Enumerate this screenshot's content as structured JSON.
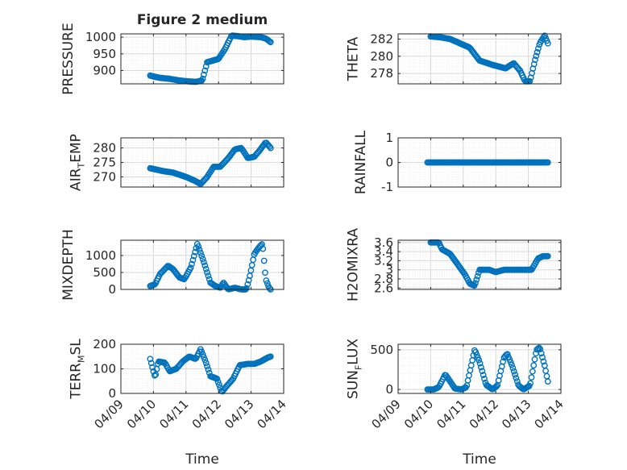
{
  "figure": {
    "title": "Figure 2 medium",
    "xlabel": "Time"
  },
  "colors": {
    "marker": "#0072BD",
    "axis": "#262626",
    "grid": "#d9d9d9",
    "minor_grid": "#ececec"
  },
  "chart_data": [
    {
      "id": "pressure",
      "type": "scatter",
      "ylabel": "PRESSURE",
      "ylim": [
        860,
        1010
      ],
      "yticks": [
        "900",
        "950",
        "1000"
      ],
      "ytick_values": [
        900,
        950,
        1000
      ],
      "xlim": [
        0,
        5
      ],
      "xticks": [
        "04/09",
        "04/10",
        "04/11",
        "04/12",
        "04/13",
        "04/14"
      ],
      "grid": true,
      "keypoints": [
        [
          0.9,
          885
        ],
        [
          1.0,
          882
        ],
        [
          1.2,
          878
        ],
        [
          1.5,
          875
        ],
        [
          1.8,
          870
        ],
        [
          2.0,
          868
        ],
        [
          2.3,
          866
        ],
        [
          2.5,
          870
        ],
        [
          2.65,
          925
        ],
        [
          2.9,
          932
        ],
        [
          3.0,
          935
        ],
        [
          3.2,
          965
        ],
        [
          3.4,
          1005
        ],
        [
          3.6,
          1003
        ],
        [
          3.8,
          1000
        ],
        [
          4.0,
          1002
        ],
        [
          4.3,
          1000
        ],
        [
          4.45,
          996
        ],
        [
          4.6,
          985
        ]
      ]
    },
    {
      "id": "theta",
      "type": "scatter",
      "ylabel": "THETA",
      "ylim": [
        276.8,
        282.6
      ],
      "yticks": [
        "278",
        "280",
        "282"
      ],
      "ytick_values": [
        278,
        280,
        282
      ],
      "xlim": [
        0,
        5
      ],
      "xticks": [
        "04/09",
        "04/10",
        "04/11",
        "04/12",
        "04/13",
        "04/14"
      ],
      "grid": true,
      "keypoints": [
        [
          1.0,
          282.3
        ],
        [
          1.3,
          282.2
        ],
        [
          1.6,
          282.0
        ],
        [
          1.9,
          281.5
        ],
        [
          2.2,
          281.0
        ],
        [
          2.5,
          279.5
        ],
        [
          2.9,
          279.0
        ],
        [
          3.3,
          278.6
        ],
        [
          3.55,
          279.2
        ],
        [
          3.75,
          278.3
        ],
        [
          3.9,
          277.1
        ],
        [
          4.05,
          277.1
        ],
        [
          4.2,
          279.5
        ],
        [
          4.35,
          281.5
        ],
        [
          4.5,
          282.4
        ],
        [
          4.6,
          281.5
        ]
      ]
    },
    {
      "id": "air_temp",
      "type": "scatter",
      "ylabel": "AIR",
      "ylabel_sub": "T",
      "ylabel_tail": "EMP",
      "ylim": [
        266.5,
        283.5
      ],
      "yticks": [
        "270",
        "275",
        "280"
      ],
      "ytick_values": [
        270,
        275,
        280
      ],
      "xlim": [
        0,
        5
      ],
      "xticks": [
        "04/09",
        "04/10",
        "04/11",
        "04/12",
        "04/13",
        "04/14"
      ],
      "grid": true,
      "keypoints": [
        [
          0.9,
          273.0
        ],
        [
          1.3,
          272.0
        ],
        [
          1.6,
          271.5
        ],
        [
          2.0,
          270.0
        ],
        [
          2.3,
          268.5
        ],
        [
          2.45,
          267.5
        ],
        [
          2.65,
          270.0
        ],
        [
          2.85,
          273.5
        ],
        [
          3.05,
          273.5
        ],
        [
          3.3,
          276.5
        ],
        [
          3.5,
          279.5
        ],
        [
          3.7,
          280.0
        ],
        [
          3.9,
          276.5
        ],
        [
          4.1,
          277.0
        ],
        [
          4.25,
          279.0
        ],
        [
          4.45,
          282.0
        ],
        [
          4.6,
          280.0
        ]
      ]
    },
    {
      "id": "rainfall",
      "type": "scatter",
      "ylabel": "RAINFALL",
      "ylim": [
        -1,
        1
      ],
      "yticks": [
        "-1",
        "0",
        "1"
      ],
      "ytick_values": [
        -1,
        0,
        1
      ],
      "xlim": [
        0,
        5
      ],
      "xticks": [
        "04/09",
        "04/10",
        "04/11",
        "04/12",
        "04/13",
        "04/14"
      ],
      "grid": true,
      "keypoints": [
        [
          0.9,
          0
        ],
        [
          4.6,
          0
        ]
      ]
    },
    {
      "id": "mixdepth",
      "type": "scatter",
      "ylabel": "MIXDEPTH",
      "ylim": [
        0,
        1450
      ],
      "yticks": [
        "0",
        "500",
        "1000"
      ],
      "ytick_values": [
        0,
        500,
        1000
      ],
      "xlim": [
        0,
        5
      ],
      "xticks": [
        "04/09",
        "04/10",
        "04/11",
        "04/12",
        "04/13",
        "04/14"
      ],
      "grid": true,
      "keypoints": [
        [
          0.9,
          100
        ],
        [
          1.05,
          150
        ],
        [
          1.2,
          450
        ],
        [
          1.45,
          700
        ],
        [
          1.6,
          600
        ],
        [
          1.8,
          350
        ],
        [
          1.95,
          300
        ],
        [
          2.15,
          650
        ],
        [
          2.35,
          1350
        ],
        [
          2.55,
          800
        ],
        [
          2.75,
          200
        ],
        [
          2.9,
          100
        ],
        [
          3.05,
          50
        ],
        [
          3.15,
          200
        ],
        [
          3.3,
          0
        ],
        [
          3.5,
          50
        ],
        [
          3.7,
          0
        ],
        [
          3.85,
          0
        ],
        [
          3.95,
          350
        ],
        [
          4.1,
          1050
        ],
        [
          4.25,
          1250
        ],
        [
          4.35,
          1350
        ],
        [
          4.45,
          300
        ],
        [
          4.55,
          50
        ],
        [
          4.6,
          0
        ]
      ]
    },
    {
      "id": "h2omixra",
      "type": "scatter",
      "ylabel": "H2OMIXRA",
      "ylim": [
        2.57,
        3.65
      ],
      "yticks": [
        "2.6",
        "2.8",
        "3",
        "3.2",
        "3.4",
        "3.6"
      ],
      "ytick_values": [
        2.6,
        2.8,
        3.0,
        3.2,
        3.4,
        3.6
      ],
      "xlim": [
        0,
        5
      ],
      "xticks": [
        "04/09",
        "04/10",
        "04/11",
        "04/12",
        "04/13",
        "04/14"
      ],
      "grid": true,
      "keypoints": [
        [
          1.0,
          3.6
        ],
        [
          1.25,
          3.6
        ],
        [
          1.35,
          3.45
        ],
        [
          1.6,
          3.35
        ],
        [
          1.85,
          3.1
        ],
        [
          2.05,
          2.9
        ],
        [
          2.2,
          2.7
        ],
        [
          2.35,
          2.65
        ],
        [
          2.5,
          3.0
        ],
        [
          2.8,
          3.0
        ],
        [
          3.0,
          2.95
        ],
        [
          3.25,
          3.0
        ],
        [
          3.6,
          3.0
        ],
        [
          3.9,
          3.0
        ],
        [
          4.1,
          3.0
        ],
        [
          4.3,
          3.25
        ],
        [
          4.45,
          3.3
        ],
        [
          4.6,
          3.3
        ]
      ]
    },
    {
      "id": "terr_msl",
      "type": "scatter",
      "ylabel": "TERR",
      "ylabel_sub": "M",
      "ylabel_tail": "SL",
      "ylim": [
        0,
        200
      ],
      "yticks": [
        "0",
        "100",
        "200"
      ],
      "ytick_values": [
        0,
        100,
        200
      ],
      "xlim": [
        0,
        5
      ],
      "xticks": [
        "04/09",
        "04/10",
        "04/11",
        "04/12",
        "04/13",
        "04/14"
      ],
      "grid": true,
      "keypoints": [
        [
          0.9,
          140
        ],
        [
          1.05,
          65
        ],
        [
          1.15,
          130
        ],
        [
          1.35,
          125
        ],
        [
          1.5,
          90
        ],
        [
          1.7,
          100
        ],
        [
          1.9,
          130
        ],
        [
          2.1,
          150
        ],
        [
          2.3,
          140
        ],
        [
          2.45,
          180
        ],
        [
          2.6,
          130
        ],
        [
          2.75,
          70
        ],
        [
          2.95,
          60
        ],
        [
          3.1,
          5
        ],
        [
          3.25,
          30
        ],
        [
          3.45,
          60
        ],
        [
          3.65,
          115
        ],
        [
          3.9,
          120
        ],
        [
          4.1,
          120
        ],
        [
          4.3,
          130
        ],
        [
          4.5,
          145
        ],
        [
          4.6,
          150
        ]
      ]
    },
    {
      "id": "sun_flux",
      "type": "scatter",
      "ylabel": "SUN",
      "ylabel_sub": "F",
      "ylabel_tail": "LUX",
      "ylim": [
        -50,
        570
      ],
      "yticks": [
        "0",
        "500"
      ],
      "ytick_values": [
        0,
        500
      ],
      "xlim": [
        0,
        5
      ],
      "xticks": [
        "04/09",
        "04/10",
        "04/11",
        "04/12",
        "04/13",
        "04/14"
      ],
      "grid": true,
      "keypoints": [
        [
          0.9,
          0
        ],
        [
          1.1,
          0
        ],
        [
          1.25,
          30
        ],
        [
          1.45,
          190
        ],
        [
          1.6,
          100
        ],
        [
          1.75,
          10
        ],
        [
          1.95,
          0
        ],
        [
          2.1,
          30
        ],
        [
          2.35,
          500
        ],
        [
          2.5,
          350
        ],
        [
          2.7,
          60
        ],
        [
          2.9,
          0
        ],
        [
          3.05,
          50
        ],
        [
          3.25,
          400
        ],
        [
          3.35,
          450
        ],
        [
          3.5,
          300
        ],
        [
          3.7,
          50
        ],
        [
          3.85,
          0
        ],
        [
          4.05,
          50
        ],
        [
          4.25,
          500
        ],
        [
          4.35,
          530
        ],
        [
          4.5,
          300
        ],
        [
          4.6,
          100
        ]
      ]
    }
  ]
}
